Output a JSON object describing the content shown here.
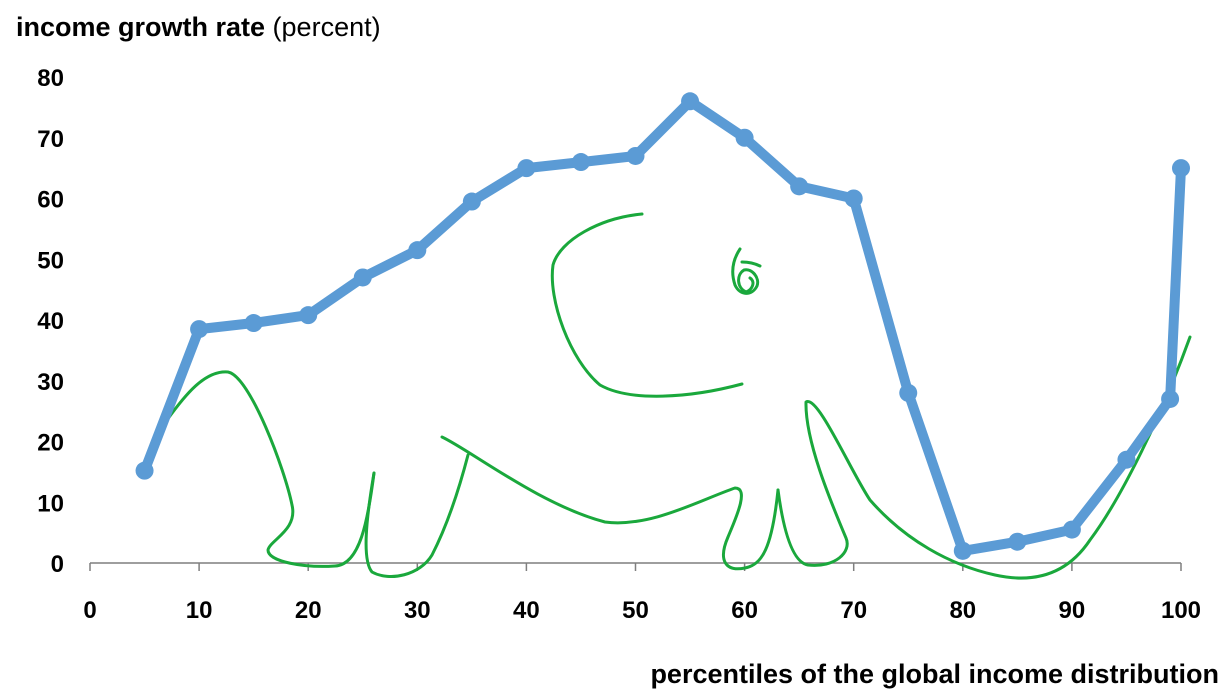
{
  "chart_data": {
    "type": "line",
    "ylabel_bold": "income growth rate",
    "ylabel_normal": " (percent)",
    "xlabel": "percentiles of the global income distribution",
    "x_ticks": [
      0,
      10,
      20,
      30,
      40,
      50,
      60,
      70,
      80,
      90,
      100
    ],
    "y_ticks": [
      0,
      10,
      20,
      30,
      40,
      50,
      60,
      70,
      80
    ],
    "xlim": [
      0,
      100
    ],
    "ylim": [
      0,
      80
    ],
    "grid": false,
    "legend": "none",
    "series": [
      {
        "x": [
          5,
          10,
          15,
          20,
          25,
          30,
          35,
          40,
          45,
          50,
          55,
          60,
          65,
          70,
          75,
          80,
          85,
          90,
          95,
          99,
          100
        ],
        "y": [
          15.2,
          38.5,
          39.5,
          40.8,
          47,
          51.5,
          59.5,
          65,
          66,
          67,
          76,
          70,
          62,
          60,
          28,
          2,
          3.5,
          5.5,
          17,
          27,
          65
        ],
        "color": "#5b9bd5"
      }
    ],
    "annotation_color": "#1aa83c"
  }
}
